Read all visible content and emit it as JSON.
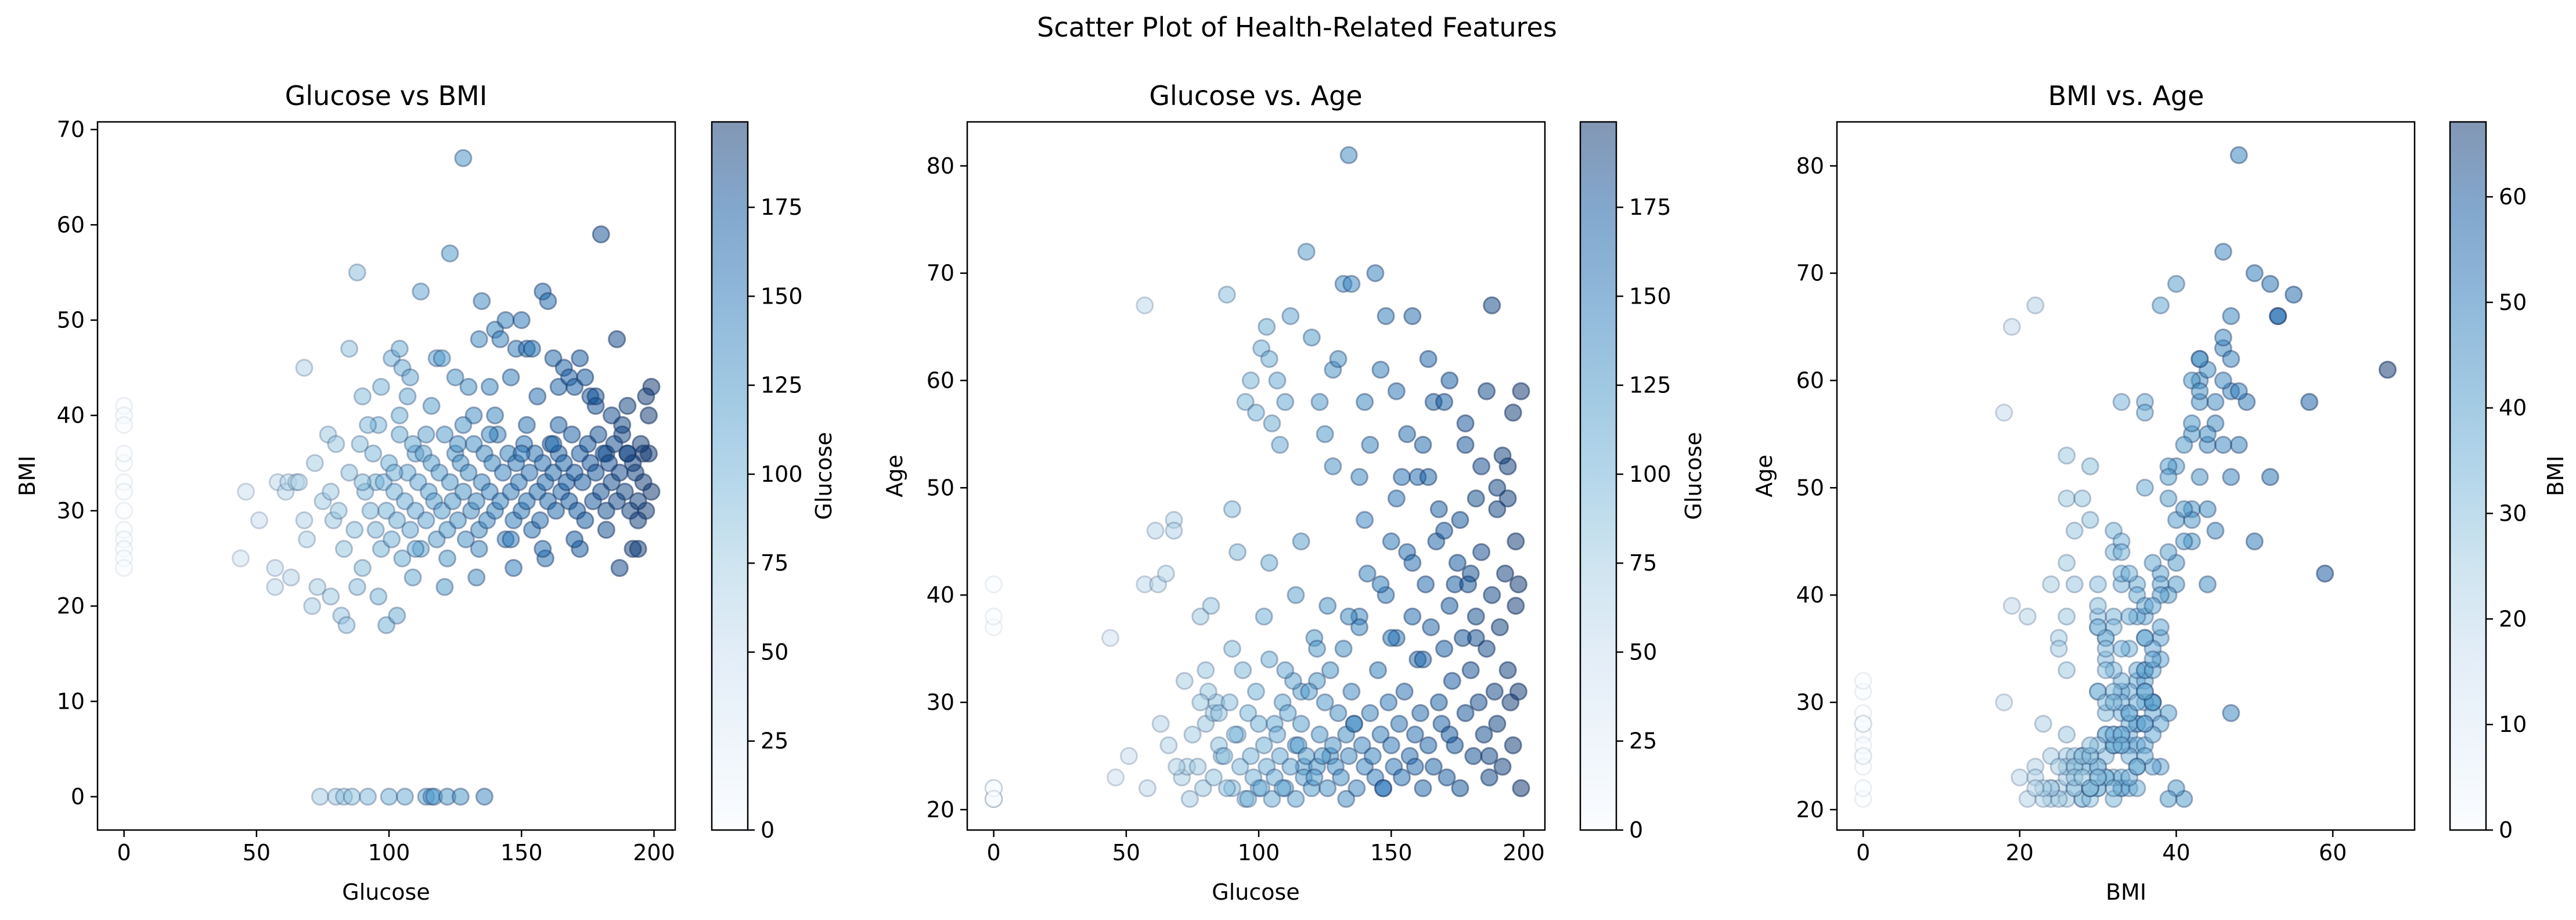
{
  "chart_data": {
    "title": "Scatter Plot of Health-Related Features",
    "colormap": [
      "#f7fbff",
      "#deebf7",
      "#c6dbef",
      "#9ecae1",
      "#6baed6",
      "#4292c6",
      "#2171b5",
      "#08519c",
      "#08306b"
    ],
    "point_alpha": 0.5,
    "edge_color": "#1f3a66",
    "panels": [
      {
        "type": "scatter",
        "title": "Glucose vs BMI",
        "xlabel": "Glucose",
        "ylabel": "BMI",
        "xlim": [
          -10,
          208
        ],
        "ylim": [
          -3.5,
          70.8
        ],
        "xticks": [
          0,
          50,
          100,
          150,
          200
        ],
        "yticks": [
          0,
          10,
          20,
          30,
          40,
          50,
          60,
          70
        ],
        "colorbar": {
          "label": "Glucose",
          "range": [
            0,
            199
          ],
          "ticks": [
            0,
            25,
            50,
            75,
            100,
            125,
            150,
            175
          ]
        },
        "x_field": "glucose",
        "y_field": "bmi",
        "color_field": "glucose",
        "points": []
      },
      {
        "type": "scatter",
        "title": "Glucose vs. Age",
        "xlabel": "Glucose",
        "ylabel": "Age",
        "xlim": [
          -10,
          208
        ],
        "ylim": [
          18.1,
          84.1
        ],
        "xticks": [
          0,
          50,
          100,
          150,
          200
        ],
        "yticks": [
          20,
          30,
          40,
          50,
          60,
          70,
          80
        ],
        "colorbar": {
          "label": "Glucose",
          "range": [
            0,
            199
          ],
          "ticks": [
            0,
            25,
            50,
            75,
            100,
            125,
            150,
            175
          ]
        },
        "x_field": "glucose",
        "y_field": "age",
        "color_field": "glucose",
        "points": []
      },
      {
        "type": "scatter",
        "title": "BMI vs. Age",
        "xlabel": "BMI",
        "ylabel": "Age",
        "xlim": [
          -3.35,
          70.45
        ],
        "ylim": [
          18.1,
          84.1
        ],
        "xticks": [
          0,
          20,
          40,
          60
        ],
        "yticks": [
          20,
          30,
          40,
          50,
          60,
          70,
          80
        ],
        "colorbar": {
          "label": "BMI",
          "range": [
            0,
            67.1
          ],
          "ticks": [
            0,
            10,
            20,
            30,
            40,
            50,
            60
          ]
        },
        "x_field": "bmi",
        "y_field": "age",
        "color_field": "bmi",
        "points": []
      }
    ],
    "records": [
      [
        0,
        41,
        21
      ],
      [
        0,
        40,
        22
      ],
      [
        0,
        39,
        21
      ],
      [
        0,
        33,
        22
      ],
      [
        0,
        32,
        21
      ],
      [
        0,
        28,
        21
      ],
      [
        0,
        27,
        22
      ],
      [
        0,
        26,
        21
      ],
      [
        0,
        25,
        22
      ],
      [
        0,
        24,
        21
      ],
      [
        0,
        30,
        37
      ],
      [
        0,
        35,
        41
      ],
      [
        0,
        36,
        38
      ],
      [
        44,
        25,
        36
      ],
      [
        57,
        22,
        67
      ],
      [
        57,
        24,
        41
      ],
      [
        58,
        33,
        22
      ],
      [
        61,
        32,
        46
      ],
      [
        62,
        33,
        41
      ],
      [
        65,
        33,
        42
      ],
      [
        68,
        29,
        47
      ],
      [
        68,
        45,
        46
      ],
      [
        71,
        20,
        23
      ],
      [
        73,
        22,
        24
      ],
      [
        74,
        0,
        21
      ],
      [
        78,
        21,
        38
      ],
      [
        80,
        0,
        28
      ],
      [
        82,
        19,
        39
      ],
      [
        83,
        0,
        29
      ],
      [
        84,
        18,
        30
      ],
      [
        85,
        47,
        29
      ],
      [
        86,
        0,
        25
      ],
      [
        88,
        55,
        68
      ],
      [
        90,
        42,
        48
      ],
      [
        92,
        0,
        27
      ],
      [
        95,
        33,
        58
      ],
      [
        97,
        43,
        60
      ],
      [
        99,
        18,
        57
      ],
      [
        100,
        0,
        22
      ],
      [
        101,
        46,
        63
      ],
      [
        103,
        19,
        65
      ],
      [
        104,
        47,
        62
      ],
      [
        105,
        45,
        56
      ],
      [
        106,
        0,
        28
      ],
      [
        107,
        42,
        60
      ],
      [
        108,
        44,
        54
      ],
      [
        110,
        36,
        58
      ],
      [
        112,
        53,
        66
      ],
      [
        114,
        0,
        26
      ],
      [
        116,
        0,
        31
      ],
      [
        117,
        0,
        24
      ],
      [
        118,
        46,
        72
      ],
      [
        120,
        46,
        64
      ],
      [
        122,
        0,
        32
      ],
      [
        123,
        57,
        58
      ],
      [
        125,
        44,
        55
      ],
      [
        127,
        0,
        25
      ],
      [
        128,
        67,
        61
      ],
      [
        130,
        43,
        62
      ],
      [
        132,
        40,
        69
      ],
      [
        134,
        48,
        81
      ],
      [
        135,
        52,
        69
      ],
      [
        136,
        0,
        28
      ],
      [
        138,
        43,
        51
      ],
      [
        140,
        49,
        58
      ],
      [
        142,
        48,
        54
      ],
      [
        144,
        50,
        70
      ],
      [
        146,
        44,
        61
      ],
      [
        148,
        47,
        66
      ],
      [
        150,
        50,
        45
      ],
      [
        152,
        47,
        59
      ],
      [
        154,
        47,
        51
      ],
      [
        156,
        42,
        55
      ],
      [
        158,
        53,
        66
      ],
      [
        160,
        52,
        51
      ],
      [
        162,
        46,
        54
      ],
      [
        164,
        43,
        62
      ],
      [
        166,
        45,
        58
      ],
      [
        168,
        44,
        48
      ],
      [
        170,
        43,
        58
      ],
      [
        172,
        46,
        60
      ],
      [
        174,
        44,
        41
      ],
      [
        176,
        42,
        47
      ],
      [
        178,
        41,
        54
      ],
      [
        180,
        59,
        42
      ],
      [
        182,
        36,
        36
      ],
      [
        184,
        40,
        52
      ],
      [
        186,
        48,
        59
      ],
      [
        188,
        38,
        67
      ],
      [
        190,
        36,
        50
      ],
      [
        192,
        26,
        53
      ],
      [
        194,
        26,
        49
      ],
      [
        196,
        36,
        57
      ],
      [
        197,
        42,
        45
      ],
      [
        198,
        40,
        41
      ],
      [
        199,
        43,
        59
      ],
      [
        46,
        32,
        23
      ],
      [
        51,
        29,
        25
      ],
      [
        63,
        23,
        28
      ],
      [
        66,
        33,
        26
      ],
      [
        69,
        27,
        24
      ],
      [
        72,
        35,
        32
      ],
      [
        75,
        31,
        27
      ],
      [
        77,
        38,
        24
      ],
      [
        79,
        29,
        22
      ],
      [
        81,
        30,
        31
      ],
      [
        83,
        26,
        23
      ],
      [
        85,
        34,
        26
      ],
      [
        87,
        28,
        25
      ],
      [
        89,
        37,
        30
      ],
      [
        90,
        24,
        22
      ],
      [
        91,
        32,
        27
      ],
      [
        93,
        30,
        24
      ],
      [
        94,
        36,
        33
      ],
      [
        95,
        28,
        21
      ],
      [
        96,
        39,
        29
      ],
      [
        97,
        26,
        25
      ],
      [
        98,
        33,
        23
      ],
      [
        99,
        30,
        31
      ],
      [
        100,
        35,
        28
      ],
      [
        101,
        27,
        22
      ],
      [
        102,
        32,
        26
      ],
      [
        103,
        29,
        24
      ],
      [
        104,
        38,
        34
      ],
      [
        105,
        25,
        21
      ],
      [
        106,
        31,
        23
      ],
      [
        107,
        34,
        27
      ],
      [
        108,
        28,
        25
      ],
      [
        109,
        37,
        30
      ],
      [
        110,
        30,
        22
      ],
      [
        111,
        33,
        29
      ],
      [
        112,
        26,
        24
      ],
      [
        113,
        36,
        32
      ],
      [
        114,
        29,
        21
      ],
      [
        115,
        32,
        26
      ],
      [
        116,
        35,
        28
      ],
      [
        117,
        31,
        23
      ],
      [
        118,
        27,
        25
      ],
      [
        119,
        34,
        31
      ],
      [
        120,
        30,
        22
      ],
      [
        121,
        38,
        36
      ],
      [
        122,
        28,
        24
      ],
      [
        123,
        33,
        27
      ],
      [
        124,
        31,
        25
      ],
      [
        125,
        36,
        30
      ],
      [
        126,
        29,
        22
      ],
      [
        127,
        35,
        33
      ],
      [
        128,
        32,
        26
      ],
      [
        129,
        27,
        24
      ],
      [
        130,
        34,
        29
      ],
      [
        131,
        30,
        23
      ],
      [
        132,
        37,
        35
      ],
      [
        133,
        31,
        27
      ],
      [
        134,
        28,
        25
      ],
      [
        135,
        33,
        31
      ],
      [
        136,
        36,
        28
      ],
      [
        137,
        29,
        22
      ],
      [
        138,
        32,
        38
      ],
      [
        139,
        35,
        26
      ],
      [
        140,
        30,
        24
      ],
      [
        141,
        38,
        42
      ],
      [
        142,
        31,
        29
      ],
      [
        143,
        34,
        25
      ],
      [
        144,
        27,
        23
      ],
      [
        145,
        36,
        33
      ],
      [
        146,
        32,
        27
      ],
      [
        147,
        29,
        22
      ],
      [
        148,
        35,
        40
      ],
      [
        149,
        33,
        30
      ],
      [
        150,
        30,
        26
      ],
      [
        151,
        37,
        24
      ],
      [
        152,
        31,
        36
      ],
      [
        153,
        34,
        28
      ],
      [
        154,
        28,
        23
      ],
      [
        155,
        36,
        31
      ],
      [
        156,
        32,
        44
      ],
      [
        157,
        29,
        25
      ],
      [
        158,
        35,
        38
      ],
      [
        159,
        33,
        27
      ],
      [
        160,
        31,
        34
      ],
      [
        161,
        37,
        29
      ],
      [
        162,
        34,
        22
      ],
      [
        163,
        30,
        41
      ],
      [
        164,
        36,
        26
      ],
      [
        165,
        32,
        37
      ],
      [
        166,
        35,
        24
      ],
      [
        167,
        33,
        45
      ],
      [
        168,
        31,
        30
      ],
      [
        169,
        38,
        28
      ],
      [
        170,
        34,
        35
      ],
      [
        171,
        30,
        23
      ],
      [
        172,
        36,
        39
      ],
      [
        173,
        33,
        32
      ],
      [
        174,
        29,
        26
      ],
      [
        175,
        37,
        43
      ],
      [
        176,
        35,
        22
      ],
      [
        177,
        31,
        36
      ],
      [
        178,
        34,
        29
      ],
      [
        179,
        38,
        41
      ],
      [
        180,
        32,
        33
      ],
      [
        181,
        36,
        25
      ],
      [
        182,
        30,
        38
      ],
      [
        183,
        35,
        30
      ],
      [
        184,
        33,
        44
      ],
      [
        185,
        37,
        27
      ],
      [
        186,
        31,
        35
      ],
      [
        187,
        34,
        23
      ],
      [
        188,
        39,
        40
      ],
      [
        189,
        32,
        31
      ],
      [
        190,
        36,
        28
      ],
      [
        191,
        30,
        37
      ],
      [
        192,
        35,
        24
      ],
      [
        193,
        34,
        42
      ],
      [
        194,
        31,
        33
      ],
      [
        195,
        37,
        30
      ],
      [
        196,
        33,
        26
      ],
      [
        197,
        30,
        39
      ],
      [
        198,
        36,
        31
      ],
      [
        199,
        32,
        22
      ],
      [
        187,
        24,
        25
      ],
      [
        172,
        26,
        27
      ],
      [
        159,
        25,
        24
      ],
      [
        147,
        24,
        22
      ],
      [
        133,
        23,
        21
      ],
      [
        121,
        22,
        23
      ],
      [
        109,
        23,
        22
      ],
      [
        96,
        21,
        21
      ],
      [
        88,
        22,
        22
      ],
      [
        140,
        40,
        47
      ],
      [
        128,
        39,
        52
      ],
      [
        116,
        41,
        45
      ],
      [
        104,
        40,
        43
      ],
      [
        92,
        39,
        44
      ],
      [
        80,
        37,
        33
      ],
      [
        152,
        39,
        49
      ],
      [
        164,
        39,
        51
      ],
      [
        178,
        42,
        56
      ],
      [
        190,
        41,
        48
      ],
      [
        114,
        38,
        40
      ],
      [
        126,
        37,
        39
      ],
      [
        138,
        38,
        37
      ],
      [
        150,
        36,
        36
      ],
      [
        162,
        37,
        34
      ],
      [
        102,
        34,
        38
      ],
      [
        90,
        33,
        35
      ],
      [
        78,
        32,
        30
      ],
      [
        110,
        26,
        33
      ],
      [
        122,
        25,
        35
      ],
      [
        134,
        26,
        38
      ],
      [
        146,
        27,
        41
      ],
      [
        158,
        26,
        43
      ],
      [
        170,
        27,
        46
      ],
      [
        182,
        28,
        49
      ],
      [
        194,
        29,
        52
      ]
    ]
  }
}
